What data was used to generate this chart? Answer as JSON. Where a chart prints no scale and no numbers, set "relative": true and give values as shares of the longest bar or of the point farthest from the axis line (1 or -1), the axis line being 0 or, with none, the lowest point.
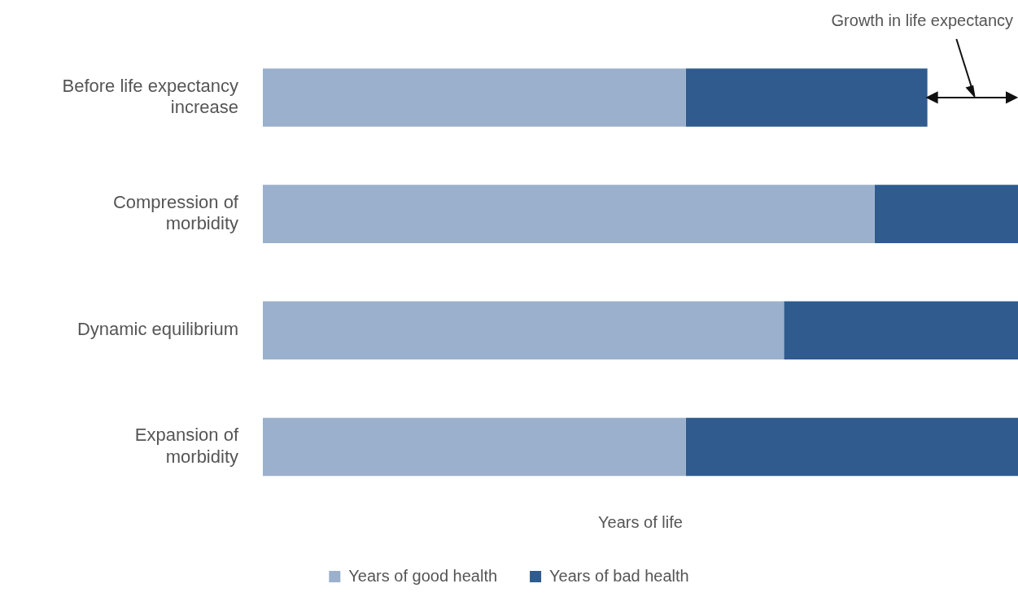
{
  "chart_data": {
    "type": "bar",
    "orientation": "horizontal",
    "stacked": true,
    "relative": true,
    "xlabel": "Years of life",
    "categories": [
      "Before life expectancy\nincrease",
      "Compression of\nmorbidity",
      "Dynamic equilibrium",
      "Expansion of\nmorbidity"
    ],
    "series": [
      {
        "name": "Years of good health",
        "color": "#9ab0cc",
        "values": [
          0.56,
          0.81,
          0.69,
          0.56
        ]
      },
      {
        "name": "Years of bad health",
        "color": "#2f5b8e",
        "values": [
          0.32,
          0.19,
          0.31,
          0.44
        ]
      }
    ],
    "legend": "bottom",
    "grid": false,
    "annotations": [
      "Growth in life expectancy"
    ]
  }
}
